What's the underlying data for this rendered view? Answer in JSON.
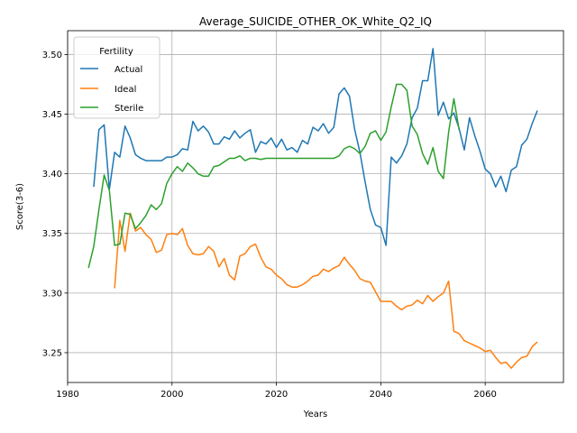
{
  "chart_data": {
    "type": "line",
    "title": "Average_SUICIDE_OTHER_OK_White_Q2_IQ",
    "xlabel": "Years",
    "ylabel": "Score(3-6)",
    "xlim": [
      1980,
      2075
    ],
    "ylim": [
      3.225,
      3.52
    ],
    "xticks": [
      1980,
      2000,
      2020,
      2040,
      2060
    ],
    "yticks": [
      3.25,
      3.3,
      3.35,
      3.4,
      3.45,
      3.5
    ],
    "xtick_labels": [
      "1980",
      "2000",
      "2020",
      "2040",
      "2060"
    ],
    "ytick_labels": [
      "3.25",
      "3.30",
      "3.35",
      "3.40",
      "3.45",
      "3.50"
    ],
    "grid": true,
    "legend": {
      "title": "Fertility",
      "placement": "upper-left"
    },
    "series": [
      {
        "name": "Actual",
        "color": "#1f77b4",
        "x": [
          1985,
          1986,
          1987,
          1988,
          1989,
          1990,
          1991,
          1992,
          1993,
          1994,
          1995,
          1996,
          1997,
          1998,
          1999,
          2000,
          2001,
          2002,
          2003,
          2004,
          2005,
          2006,
          2007,
          2008,
          2009,
          2010,
          2011,
          2012,
          2013,
          2014,
          2015,
          2016,
          2017,
          2018,
          2019,
          2020,
          2021,
          2022,
          2023,
          2024,
          2025,
          2026,
          2027,
          2028,
          2029,
          2030,
          2031,
          2032,
          2033,
          2034,
          2035,
          2036,
          2037,
          2038,
          2039,
          2040,
          2041,
          2042,
          2043,
          2044,
          2045,
          2046,
          2047,
          2048,
          2049,
          2050,
          2051,
          2052,
          2053,
          2054,
          2055,
          2056,
          2057,
          2058,
          2059,
          2060,
          2061,
          2062,
          2063,
          2064,
          2065,
          2066,
          2067,
          2068,
          2069,
          2070
        ],
        "values": [
          3.389,
          3.437,
          3.441,
          3.387,
          3.418,
          3.414,
          3.44,
          3.43,
          3.416,
          3.413,
          3.411,
          3.411,
          3.411,
          3.411,
          3.414,
          3.414,
          3.416,
          3.421,
          3.42,
          3.444,
          3.436,
          3.44,
          3.435,
          3.425,
          3.425,
          3.431,
          3.429,
          3.436,
          3.43,
          3.434,
          3.437,
          3.418,
          3.427,
          3.425,
          3.43,
          3.422,
          3.429,
          3.42,
          3.422,
          3.418,
          3.428,
          3.425,
          3.439,
          3.436,
          3.442,
          3.434,
          3.439,
          3.467,
          3.472,
          3.465,
          3.437,
          3.418,
          3.393,
          3.37,
          3.357,
          3.355,
          3.34,
          3.414,
          3.409,
          3.415,
          3.425,
          3.447,
          3.455,
          3.478,
          3.478,
          3.505,
          3.449,
          3.46,
          3.446,
          3.451,
          3.438,
          3.42,
          3.447,
          3.432,
          3.419,
          3.404,
          3.4,
          3.389,
          3.398,
          3.385,
          3.403,
          3.406,
          3.424,
          3.429,
          3.442,
          3.453
        ]
      },
      {
        "name": "Ideal",
        "color": "#ff7f0e",
        "x": [
          1989,
          1990,
          1991,
          1992,
          1993,
          1994,
          1995,
          1996,
          1997,
          1998,
          1999,
          2000,
          2001,
          2002,
          2003,
          2004,
          2005,
          2006,
          2007,
          2008,
          2009,
          2010,
          2011,
          2012,
          2013,
          2014,
          2015,
          2016,
          2017,
          2018,
          2019,
          2020,
          2021,
          2022,
          2023,
          2024,
          2025,
          2026,
          2027,
          2028,
          2029,
          2030,
          2031,
          2032,
          2033,
          2034,
          2035,
          2036,
          2037,
          2038,
          2039,
          2040,
          2041,
          2042,
          2043,
          2044,
          2045,
          2046,
          2047,
          2048,
          2049,
          2050,
          2051,
          2052,
          2053,
          2054,
          2055,
          2056,
          2057,
          2058,
          2059,
          2060,
          2061,
          2062,
          2063,
          2064,
          2065,
          2066,
          2067,
          2068,
          2069,
          2070
        ],
        "values": [
          3.304,
          3.361,
          3.335,
          3.367,
          3.352,
          3.355,
          3.349,
          3.345,
          3.334,
          3.336,
          3.349,
          3.35,
          3.349,
          3.354,
          3.34,
          3.333,
          3.332,
          3.333,
          3.339,
          3.335,
          3.322,
          3.329,
          3.315,
          3.311,
          3.331,
          3.333,
          3.339,
          3.341,
          3.33,
          3.322,
          3.32,
          3.315,
          3.312,
          3.307,
          3.305,
          3.305,
          3.307,
          3.31,
          3.314,
          3.315,
          3.32,
          3.318,
          3.321,
          3.323,
          3.33,
          3.324,
          3.319,
          3.312,
          3.31,
          3.309,
          3.301,
          3.293,
          3.293,
          3.293,
          3.289,
          3.286,
          3.289,
          3.29,
          3.294,
          3.291,
          3.298,
          3.293,
          3.297,
          3.3,
          3.31,
          3.268,
          3.266,
          3.26,
          3.258,
          3.256,
          3.254,
          3.251,
          3.252,
          3.246,
          3.241,
          3.242,
          3.237,
          3.242,
          3.246,
          3.247,
          3.255,
          3.259
        ]
      },
      {
        "name": "Sterile",
        "color": "#2ca02c",
        "x": [
          1984,
          1985,
          1986,
          1987,
          1988,
          1989,
          1990,
          1991,
          1992,
          1993,
          1994,
          1995,
          1996,
          1997,
          1998,
          1999,
          2000,
          2001,
          2002,
          2003,
          2004,
          2005,
          2006,
          2007,
          2008,
          2009,
          2010,
          2011,
          2012,
          2013,
          2014,
          2015,
          2016,
          2017,
          2018,
          2019,
          2020,
          2021,
          2022,
          2023,
          2024,
          2025,
          2026,
          2027,
          2028,
          2029,
          2030,
          2031,
          2032,
          2033,
          2034,
          2035,
          2036,
          2037,
          2038,
          2039,
          2040,
          2041,
          2042,
          2043,
          2044,
          2045,
          2046,
          2047,
          2048,
          2049,
          2050,
          2051,
          2052,
          2053,
          2054,
          2055
        ],
        "values": [
          3.321,
          3.339,
          3.37,
          3.399,
          3.386,
          3.34,
          3.341,
          3.367,
          3.366,
          3.354,
          3.359,
          3.365,
          3.374,
          3.37,
          3.375,
          3.392,
          3.4,
          3.406,
          3.402,
          3.409,
          3.405,
          3.4,
          3.398,
          3.398,
          3.406,
          3.407,
          3.41,
          3.413,
          3.413,
          3.415,
          3.411,
          3.413,
          3.413,
          3.412,
          3.413,
          3.413,
          3.413,
          3.413,
          3.413,
          3.413,
          3.413,
          3.413,
          3.413,
          3.413,
          3.413,
          3.413,
          3.413,
          3.413,
          3.415,
          3.421,
          3.423,
          3.421,
          3.417,
          3.423,
          3.434,
          3.436,
          3.428,
          3.435,
          3.456,
          3.475,
          3.475,
          3.47,
          3.44,
          3.433,
          3.417,
          3.408,
          3.422,
          3.402,
          3.396,
          3.435,
          3.463,
          3.437
        ]
      }
    ]
  }
}
